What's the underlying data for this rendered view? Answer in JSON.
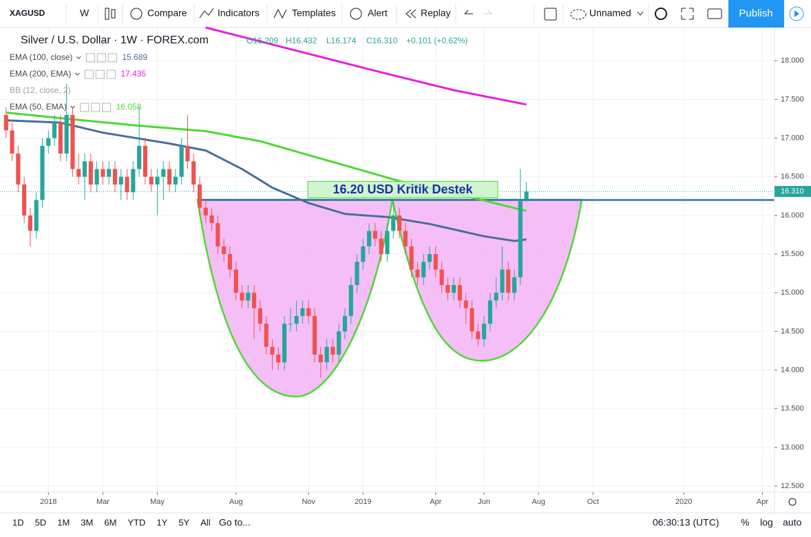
{
  "ui": {
    "symbol": "XAGUSD",
    "interval": "W",
    "toolbar": [
      "Compare",
      "Indicators",
      "Templates",
      "Alert",
      "Replay"
    ],
    "layout_name": "Unnamed",
    "publish": "Publish",
    "ohlc": [
      "O16.209",
      "H16.432",
      "L16.174",
      "C16.310",
      "+0.101 (+0.62%)"
    ],
    "hidden_indicator": "BB (12, close, 2)",
    "ranges": [
      "1D",
      "5D",
      "1M",
      "3M",
      "6M",
      "YTD",
      "1Y",
      "5Y",
      "All"
    ],
    "goto": "Go to...",
    "clock": "06:30:13 (UTC)",
    "scale_options": [
      "%",
      "log",
      "auto"
    ]
  },
  "chart_data": {
    "type": "candlestick",
    "title": "Silver / U.S. Dollar · 1W · FOREX.com",
    "up_color": "#26a69a",
    "down_color": "#ef5350",
    "x": [
      -7,
      -6,
      -5,
      -4,
      -3,
      -2,
      -1,
      0,
      1,
      2,
      3,
      4,
      5,
      6,
      7,
      8,
      9,
      10,
      11,
      12,
      13,
      14,
      15,
      16,
      17,
      18,
      19,
      20,
      21,
      22,
      23,
      24,
      25,
      26,
      27,
      28,
      29,
      30,
      31,
      32,
      33,
      34,
      35,
      36,
      37,
      38,
      39,
      40,
      41,
      42,
      43,
      44,
      45,
      46,
      47,
      48,
      49,
      50,
      51,
      52,
      53,
      54,
      55,
      56,
      57,
      58,
      59,
      60,
      61,
      62,
      63,
      64,
      65,
      66,
      67,
      68,
      69,
      70,
      71,
      72,
      73,
      74,
      75,
      76,
      77,
      78,
      79
    ],
    "open": [
      17.3,
      17.1,
      16.8,
      16.4,
      16.0,
      15.8,
      16.2,
      16.9,
      17.0,
      17.2,
      16.8,
      17.3,
      16.6,
      16.5,
      16.7,
      16.4,
      16.6,
      16.5,
      16.6,
      16.4,
      16.5,
      16.3,
      16.6,
      16.9,
      16.5,
      16.4,
      16.5,
      16.6,
      16.4,
      16.5,
      16.9,
      16.7,
      16.4,
      16.1,
      16.0,
      15.9,
      15.6,
      15.5,
      15.3,
      15.0,
      14.9,
      15.0,
      14.8,
      14.6,
      14.3,
      14.2,
      14.1,
      14.6,
      14.6,
      14.7,
      14.8,
      14.7,
      14.2,
      14.1,
      14.3,
      14.2,
      14.5,
      14.7,
      15.1,
      15.4,
      15.6,
      15.8,
      15.7,
      15.5,
      15.8,
      16.0,
      15.8,
      15.6,
      15.3,
      15.2,
      15.4,
      15.5,
      15.3,
      15.1,
      15.0,
      15.1,
      14.9,
      14.8,
      14.5,
      14.4,
      14.6,
      14.9,
      15.0,
      15.3,
      15.0,
      15.2,
      16.209
    ],
    "high": [
      17.4,
      17.2,
      16.9,
      16.5,
      16.1,
      16.3,
      17.0,
      17.1,
      17.3,
      17.3,
      17.7,
      17.4,
      16.8,
      16.8,
      16.8,
      16.7,
      16.7,
      16.7,
      16.7,
      16.6,
      16.6,
      16.7,
      17.4,
      17.0,
      16.6,
      16.6,
      16.7,
      16.7,
      16.6,
      17.0,
      17.3,
      16.8,
      16.5,
      16.2,
      16.1,
      16.0,
      15.7,
      15.6,
      15.4,
      15.1,
      15.1,
      15.1,
      14.9,
      14.7,
      14.4,
      14.3,
      14.7,
      14.8,
      14.9,
      14.9,
      14.9,
      14.8,
      14.3,
      14.4,
      14.4,
      14.6,
      14.8,
      15.2,
      15.5,
      15.7,
      15.9,
      15.9,
      15.8,
      15.9,
      16.2,
      16.1,
      15.9,
      15.7,
      15.4,
      15.5,
      15.6,
      15.6,
      15.4,
      15.2,
      15.2,
      15.2,
      15.0,
      14.9,
      14.6,
      14.7,
      15.0,
      15.2,
      15.6,
      15.4,
      15.3,
      16.6,
      16.432
    ],
    "low": [
      17.0,
      16.7,
      16.3,
      15.9,
      15.6,
      15.7,
      16.1,
      16.8,
      16.9,
      16.7,
      16.7,
      16.5,
      16.4,
      16.2,
      16.3,
      16.3,
      16.4,
      16.4,
      16.3,
      16.2,
      16.2,
      16.2,
      16.5,
      16.4,
      16.3,
      16.0,
      16.2,
      16.3,
      16.3,
      16.4,
      16.6,
      16.3,
      16.0,
      15.9,
      15.8,
      15.5,
      15.4,
      15.2,
      14.9,
      14.8,
      14.8,
      14.4,
      14.5,
      14.2,
      14.0,
      14.0,
      14.0,
      14.5,
      14.5,
      14.6,
      14.6,
      14.1,
      13.9,
      14.0,
      14.1,
      14.1,
      14.4,
      14.6,
      15.0,
      15.3,
      15.5,
      15.6,
      15.4,
      15.4,
      15.7,
      15.7,
      15.5,
      15.2,
      15.1,
      15.1,
      15.3,
      15.2,
      15.0,
      14.9,
      14.9,
      14.8,
      14.6,
      14.4,
      14.3,
      14.3,
      14.5,
      14.8,
      14.9,
      14.9,
      14.9,
      15.1,
      16.174
    ],
    "close": [
      17.1,
      16.8,
      16.4,
      16.0,
      15.8,
      16.2,
      16.9,
      17.0,
      17.2,
      16.8,
      17.3,
      16.6,
      16.5,
      16.7,
      16.4,
      16.6,
      16.5,
      16.6,
      16.4,
      16.5,
      16.3,
      16.6,
      16.9,
      16.5,
      16.4,
      16.5,
      16.6,
      16.4,
      16.5,
      16.9,
      16.7,
      16.4,
      16.1,
      16.0,
      15.9,
      15.6,
      15.5,
      15.3,
      15.0,
      14.9,
      15.0,
      14.8,
      14.6,
      14.3,
      14.2,
      14.1,
      14.6,
      14.6,
      14.7,
      14.8,
      14.7,
      14.2,
      14.1,
      14.3,
      14.2,
      14.5,
      14.7,
      15.1,
      15.4,
      15.6,
      15.8,
      15.7,
      15.5,
      15.8,
      16.0,
      15.8,
      15.6,
      15.3,
      15.2,
      15.4,
      15.5,
      15.3,
      15.1,
      15.0,
      15.1,
      14.9,
      14.8,
      14.5,
      14.4,
      14.6,
      14.9,
      15.0,
      15.3,
      15.0,
      15.2,
      16.2,
      16.31
    ],
    "series": [
      {
        "name": "EMA (100, close)",
        "color": "#4a6d96",
        "legend_value": "15.689",
        "x": [
          -7,
          2,
          9,
          20,
          26,
          32,
          37,
          43,
          49,
          56,
          63,
          72,
          77,
          79
        ],
        "values": [
          17.23,
          17.2,
          17.07,
          16.93,
          16.84,
          16.6,
          16.36,
          16.16,
          16.02,
          15.98,
          15.89,
          15.73,
          15.67,
          15.689
        ]
      },
      {
        "name": "EMA (200, EMA)",
        "color": "#e91ee0",
        "legend_value": "17.435",
        "x": [
          26,
          40,
          55,
          67,
          79
        ],
        "values": [
          18.43,
          18.15,
          17.85,
          17.62,
          17.435
        ]
      },
      {
        "name": "EMA (50, EMA)",
        "color": "#4cd832",
        "legend_value": "16.058",
        "x": [
          -7,
          3,
          15,
          26,
          35,
          43,
          52,
          60,
          69,
          79
        ],
        "values": [
          17.33,
          17.25,
          17.16,
          17.09,
          16.96,
          16.78,
          16.58,
          16.4,
          16.25,
          16.058
        ]
      }
    ],
    "support": {
      "value": 16.2,
      "label": "16.20 USD Kritik Destek",
      "color": "#2f6fb5"
    },
    "price_line": {
      "value": 16.31,
      "label": "16.310"
    },
    "ylim": [
      12.42,
      18.43
    ],
    "yticks": [
      {
        "value": 18,
        "label": "18.000"
      },
      {
        "value": 17.5,
        "label": "17.500"
      },
      {
        "value": 17,
        "label": "17.000"
      },
      {
        "value": 16.5,
        "label": "16.500"
      },
      {
        "value": 16,
        "label": "16.000"
      },
      {
        "value": 15.5,
        "label": "15.500"
      },
      {
        "value": 15,
        "label": "15.000"
      },
      {
        "value": 14.5,
        "label": "14.500"
      },
      {
        "value": 14,
        "label": "14.000"
      },
      {
        "value": 13.5,
        "label": "13.500"
      },
      {
        "value": 13,
        "label": "13.000"
      },
      {
        "value": 12.5,
        "label": "12.500"
      }
    ],
    "xlim": [
      -8,
      120
    ],
    "xticks": [
      {
        "value": 0,
        "label": "2018"
      },
      {
        "value": 9,
        "label": "Mar"
      },
      {
        "value": 18,
        "label": "May"
      },
      {
        "value": 31,
        "label": "Aug"
      },
      {
        "value": 43,
        "label": "Nov"
      },
      {
        "value": 52,
        "label": "2019"
      },
      {
        "value": 64,
        "label": "Apr"
      },
      {
        "value": 72,
        "label": "Jun"
      },
      {
        "value": 81,
        "label": "Aug"
      },
      {
        "value": 90,
        "label": "Oct"
      },
      {
        "value": 105,
        "label": "2020"
      },
      {
        "value": 118,
        "label": "Apr"
      }
    ],
    "grid": true
  }
}
